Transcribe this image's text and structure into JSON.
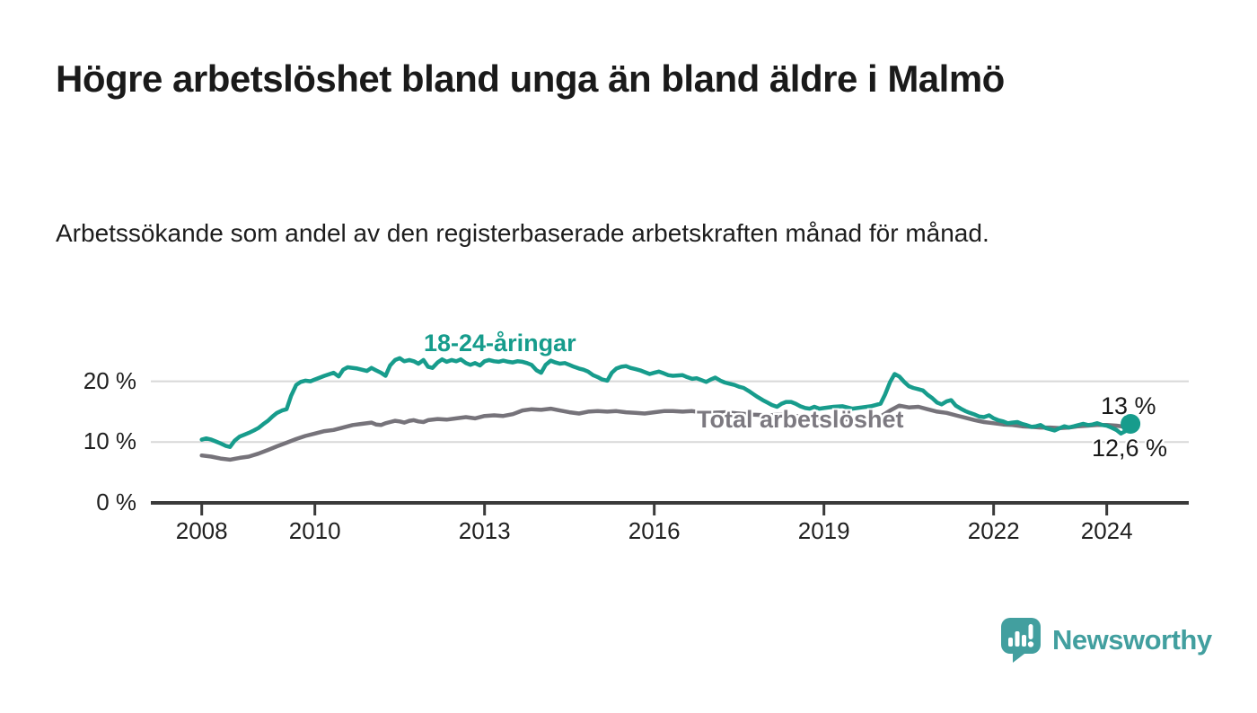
{
  "title": "Högre arbetslöshet bland unga än bland äldre i Malmö",
  "subtitle": "Arbetssökande som andel av den registerbaserade arbetskraften månad för månad.",
  "logo": {
    "text": "Newsworthy"
  },
  "colors": {
    "young": "#179c8c",
    "total": "#76737a",
    "young_label": "#169c8c",
    "total_label": "#7c7980",
    "grid": "#d8d8d8",
    "axis": "#3a3a3a",
    "text": "#1a1a1a",
    "logo": "#429f9f"
  },
  "chart_data": {
    "type": "line",
    "title": "Högre arbetslöshet bland unga än bland äldre i Malmö",
    "xlabel": "",
    "ylabel": "",
    "grid": "horizontal",
    "legend_position": "inline-labels",
    "xlim": [
      2007.1,
      2025.45
    ],
    "ylim": [
      0,
      26
    ],
    "yticks": [
      {
        "value": 0,
        "label": "0 %"
      },
      {
        "value": 10,
        "label": "10 %"
      },
      {
        "value": 20,
        "label": "20 %"
      }
    ],
    "xticks": [
      {
        "value": 2008,
        "label": "2008"
      },
      {
        "value": 2010,
        "label": "2010"
      },
      {
        "value": 2013,
        "label": "2013"
      },
      {
        "value": 2016,
        "label": "2016"
      },
      {
        "value": 2019,
        "label": "2019"
      },
      {
        "value": 2022,
        "label": "2022"
      },
      {
        "value": 2024,
        "label": "2024"
      }
    ],
    "unit": "%",
    "series": [
      {
        "name": "18-24-åringar",
        "color_key": "young",
        "end_label": "13 %",
        "end_value": 13,
        "end_dot": true,
        "points": [
          [
            2008.0,
            10.4
          ],
          [
            2008.08,
            10.6
          ],
          [
            2008.17,
            10.4
          ],
          [
            2008.25,
            10.1
          ],
          [
            2008.33,
            9.8
          ],
          [
            2008.42,
            9.4
          ],
          [
            2008.5,
            9.2
          ],
          [
            2008.58,
            10.2
          ],
          [
            2008.67,
            10.9
          ],
          [
            2008.75,
            11.2
          ],
          [
            2008.83,
            11.5
          ],
          [
            2008.92,
            11.9
          ],
          [
            2009.0,
            12.3
          ],
          [
            2009.08,
            12.9
          ],
          [
            2009.17,
            13.5
          ],
          [
            2009.25,
            14.2
          ],
          [
            2009.33,
            14.8
          ],
          [
            2009.42,
            15.2
          ],
          [
            2009.5,
            15.4
          ],
          [
            2009.58,
            17.6
          ],
          [
            2009.67,
            19.4
          ],
          [
            2009.75,
            19.9
          ],
          [
            2009.83,
            20.1
          ],
          [
            2009.92,
            20.0
          ],
          [
            2010.0,
            20.3
          ],
          [
            2010.17,
            20.9
          ],
          [
            2010.33,
            21.4
          ],
          [
            2010.42,
            20.8
          ],
          [
            2010.5,
            21.9
          ],
          [
            2010.58,
            22.3
          ],
          [
            2010.75,
            22.1
          ],
          [
            2010.92,
            21.7
          ],
          [
            2011.0,
            22.2
          ],
          [
            2011.08,
            21.8
          ],
          [
            2011.17,
            21.4
          ],
          [
            2011.25,
            20.9
          ],
          [
            2011.33,
            22.6
          ],
          [
            2011.42,
            23.5
          ],
          [
            2011.5,
            23.8
          ],
          [
            2011.58,
            23.3
          ],
          [
            2011.67,
            23.5
          ],
          [
            2011.75,
            23.3
          ],
          [
            2011.83,
            22.9
          ],
          [
            2011.92,
            23.5
          ],
          [
            2012.0,
            22.4
          ],
          [
            2012.08,
            22.2
          ],
          [
            2012.17,
            23.1
          ],
          [
            2012.25,
            23.6
          ],
          [
            2012.33,
            23.2
          ],
          [
            2012.42,
            23.5
          ],
          [
            2012.5,
            23.3
          ],
          [
            2012.58,
            23.6
          ],
          [
            2012.67,
            23.0
          ],
          [
            2012.75,
            22.7
          ],
          [
            2012.83,
            23.0
          ],
          [
            2012.92,
            22.6
          ],
          [
            2013.0,
            23.3
          ],
          [
            2013.08,
            23.5
          ],
          [
            2013.17,
            23.3
          ],
          [
            2013.25,
            23.2
          ],
          [
            2013.33,
            23.4
          ],
          [
            2013.42,
            23.2
          ],
          [
            2013.5,
            23.1
          ],
          [
            2013.58,
            23.3
          ],
          [
            2013.67,
            23.2
          ],
          [
            2013.75,
            23.0
          ],
          [
            2013.83,
            22.7
          ],
          [
            2013.92,
            21.8
          ],
          [
            2014.0,
            21.4
          ],
          [
            2014.08,
            22.7
          ],
          [
            2014.17,
            23.4
          ],
          [
            2014.25,
            23.1
          ],
          [
            2014.33,
            22.9
          ],
          [
            2014.42,
            23.0
          ],
          [
            2014.5,
            22.7
          ],
          [
            2014.58,
            22.4
          ],
          [
            2014.67,
            22.1
          ],
          [
            2014.75,
            21.9
          ],
          [
            2014.83,
            21.6
          ],
          [
            2014.92,
            21.0
          ],
          [
            2015.0,
            20.7
          ],
          [
            2015.08,
            20.3
          ],
          [
            2015.17,
            20.1
          ],
          [
            2015.25,
            21.4
          ],
          [
            2015.33,
            22.1
          ],
          [
            2015.42,
            22.4
          ],
          [
            2015.5,
            22.5
          ],
          [
            2015.58,
            22.2
          ],
          [
            2015.67,
            22.0
          ],
          [
            2015.75,
            21.8
          ],
          [
            2015.83,
            21.5
          ],
          [
            2015.92,
            21.2
          ],
          [
            2016.0,
            21.4
          ],
          [
            2016.08,
            21.6
          ],
          [
            2016.17,
            21.3
          ],
          [
            2016.25,
            21.0
          ],
          [
            2016.33,
            20.9
          ],
          [
            2016.5,
            21.0
          ],
          [
            2016.58,
            20.7
          ],
          [
            2016.67,
            20.4
          ],
          [
            2016.75,
            20.5
          ],
          [
            2016.83,
            20.2
          ],
          [
            2016.92,
            19.9
          ],
          [
            2017.0,
            20.3
          ],
          [
            2017.08,
            20.6
          ],
          [
            2017.17,
            20.1
          ],
          [
            2017.25,
            19.8
          ],
          [
            2017.33,
            19.6
          ],
          [
            2017.42,
            19.4
          ],
          [
            2017.5,
            19.1
          ],
          [
            2017.58,
            18.9
          ],
          [
            2017.67,
            18.4
          ],
          [
            2017.75,
            17.9
          ],
          [
            2017.83,
            17.4
          ],
          [
            2017.92,
            16.9
          ],
          [
            2018.0,
            16.5
          ],
          [
            2018.08,
            16.1
          ],
          [
            2018.17,
            15.8
          ],
          [
            2018.25,
            16.3
          ],
          [
            2018.33,
            16.6
          ],
          [
            2018.42,
            16.6
          ],
          [
            2018.5,
            16.3
          ],
          [
            2018.58,
            15.9
          ],
          [
            2018.67,
            15.6
          ],
          [
            2018.75,
            15.5
          ],
          [
            2018.83,
            15.8
          ],
          [
            2018.92,
            15.5
          ],
          [
            2019.0,
            15.6
          ],
          [
            2019.17,
            15.8
          ],
          [
            2019.33,
            15.9
          ],
          [
            2019.5,
            15.5
          ],
          [
            2019.67,
            15.7
          ],
          [
            2019.83,
            15.9
          ],
          [
            2020.0,
            16.3
          ],
          [
            2020.08,
            17.8
          ],
          [
            2020.17,
            19.9
          ],
          [
            2020.25,
            21.2
          ],
          [
            2020.33,
            20.8
          ],
          [
            2020.42,
            19.9
          ],
          [
            2020.5,
            19.2
          ],
          [
            2020.58,
            18.9
          ],
          [
            2020.67,
            18.7
          ],
          [
            2020.75,
            18.5
          ],
          [
            2020.83,
            17.8
          ],
          [
            2020.92,
            17.2
          ],
          [
            2021.0,
            16.5
          ],
          [
            2021.08,
            16.2
          ],
          [
            2021.17,
            16.7
          ],
          [
            2021.25,
            16.9
          ],
          [
            2021.33,
            16.0
          ],
          [
            2021.42,
            15.5
          ],
          [
            2021.5,
            15.1
          ],
          [
            2021.58,
            14.8
          ],
          [
            2021.67,
            14.5
          ],
          [
            2021.75,
            14.2
          ],
          [
            2021.83,
            14.1
          ],
          [
            2021.92,
            14.4
          ],
          [
            2022.0,
            13.9
          ],
          [
            2022.08,
            13.6
          ],
          [
            2022.17,
            13.4
          ],
          [
            2022.25,
            13.1
          ],
          [
            2022.33,
            13.2
          ],
          [
            2022.42,
            13.3
          ],
          [
            2022.5,
            13.0
          ],
          [
            2022.58,
            12.8
          ],
          [
            2022.67,
            12.5
          ],
          [
            2022.75,
            12.6
          ],
          [
            2022.83,
            12.8
          ],
          [
            2022.92,
            12.3
          ],
          [
            2023.0,
            12.1
          ],
          [
            2023.08,
            11.9
          ],
          [
            2023.17,
            12.3
          ],
          [
            2023.25,
            12.6
          ],
          [
            2023.33,
            12.4
          ],
          [
            2023.42,
            12.6
          ],
          [
            2023.5,
            12.8
          ],
          [
            2023.58,
            13.0
          ],
          [
            2023.67,
            12.8
          ],
          [
            2023.75,
            12.9
          ],
          [
            2023.83,
            13.1
          ],
          [
            2023.92,
            12.8
          ],
          [
            2024.0,
            12.7
          ],
          [
            2024.08,
            12.4
          ],
          [
            2024.17,
            12.0
          ],
          [
            2024.25,
            11.4
          ],
          [
            2024.33,
            11.8
          ],
          [
            2024.42,
            13.0
          ]
        ]
      },
      {
        "name": "Total arbetslöshet",
        "color_key": "total",
        "end_label": "12,6 %",
        "end_value": 12.6,
        "end_dot": false,
        "points": [
          [
            2008.0,
            7.8
          ],
          [
            2008.17,
            7.6
          ],
          [
            2008.33,
            7.3
          ],
          [
            2008.5,
            7.1
          ],
          [
            2008.67,
            7.4
          ],
          [
            2008.83,
            7.6
          ],
          [
            2009.0,
            8.1
          ],
          [
            2009.17,
            8.7
          ],
          [
            2009.33,
            9.3
          ],
          [
            2009.5,
            9.9
          ],
          [
            2009.67,
            10.5
          ],
          [
            2009.83,
            11.0
          ],
          [
            2010.0,
            11.4
          ],
          [
            2010.17,
            11.8
          ],
          [
            2010.33,
            12.0
          ],
          [
            2010.5,
            12.4
          ],
          [
            2010.67,
            12.8
          ],
          [
            2010.83,
            13.0
          ],
          [
            2011.0,
            13.2
          ],
          [
            2011.08,
            12.9
          ],
          [
            2011.17,
            12.8
          ],
          [
            2011.25,
            13.1
          ],
          [
            2011.33,
            13.3
          ],
          [
            2011.42,
            13.5
          ],
          [
            2011.5,
            13.4
          ],
          [
            2011.58,
            13.2
          ],
          [
            2011.67,
            13.5
          ],
          [
            2011.75,
            13.6
          ],
          [
            2011.83,
            13.4
          ],
          [
            2011.92,
            13.3
          ],
          [
            2012.0,
            13.6
          ],
          [
            2012.17,
            13.8
          ],
          [
            2012.33,
            13.7
          ],
          [
            2012.5,
            13.9
          ],
          [
            2012.67,
            14.1
          ],
          [
            2012.83,
            13.9
          ],
          [
            2013.0,
            14.3
          ],
          [
            2013.17,
            14.4
          ],
          [
            2013.33,
            14.3
          ],
          [
            2013.5,
            14.6
          ],
          [
            2013.67,
            15.2
          ],
          [
            2013.83,
            15.4
          ],
          [
            2014.0,
            15.3
          ],
          [
            2014.17,
            15.5
          ],
          [
            2014.33,
            15.2
          ],
          [
            2014.5,
            14.9
          ],
          [
            2014.67,
            14.7
          ],
          [
            2014.83,
            15.0
          ],
          [
            2015.0,
            15.1
          ],
          [
            2015.17,
            15.0
          ],
          [
            2015.33,
            15.1
          ],
          [
            2015.5,
            14.9
          ],
          [
            2015.67,
            14.8
          ],
          [
            2015.83,
            14.7
          ],
          [
            2016.0,
            14.9
          ],
          [
            2016.17,
            15.1
          ],
          [
            2016.33,
            15.1
          ],
          [
            2016.5,
            15.0
          ],
          [
            2016.67,
            15.1
          ],
          [
            2016.83,
            14.9
          ],
          [
            2017.0,
            14.8
          ],
          [
            2017.25,
            14.9
          ],
          [
            2017.5,
            14.7
          ],
          [
            2017.75,
            14.5
          ],
          [
            2018.0,
            14.4
          ],
          [
            2018.25,
            14.5
          ],
          [
            2018.5,
            14.3
          ],
          [
            2018.75,
            14.1
          ],
          [
            2019.0,
            13.9
          ],
          [
            2019.25,
            13.8
          ],
          [
            2019.5,
            13.7
          ],
          [
            2019.75,
            13.9
          ],
          [
            2020.0,
            14.2
          ],
          [
            2020.17,
            15.2
          ],
          [
            2020.33,
            16.0
          ],
          [
            2020.5,
            15.7
          ],
          [
            2020.67,
            15.8
          ],
          [
            2020.83,
            15.4
          ],
          [
            2021.0,
            15.0
          ],
          [
            2021.17,
            14.8
          ],
          [
            2021.33,
            14.4
          ],
          [
            2021.5,
            14.0
          ],
          [
            2021.67,
            13.6
          ],
          [
            2021.83,
            13.3
          ],
          [
            2022.0,
            13.1
          ],
          [
            2022.17,
            12.9
          ],
          [
            2022.33,
            12.8
          ],
          [
            2022.5,
            12.6
          ],
          [
            2022.67,
            12.5
          ],
          [
            2022.83,
            12.4
          ],
          [
            2023.0,
            12.4
          ],
          [
            2023.17,
            12.3
          ],
          [
            2023.33,
            12.4
          ],
          [
            2023.5,
            12.6
          ],
          [
            2023.67,
            12.7
          ],
          [
            2023.83,
            12.8
          ],
          [
            2024.0,
            12.8
          ],
          [
            2024.17,
            12.7
          ],
          [
            2024.33,
            12.5
          ],
          [
            2024.42,
            12.6
          ]
        ]
      }
    ]
  }
}
